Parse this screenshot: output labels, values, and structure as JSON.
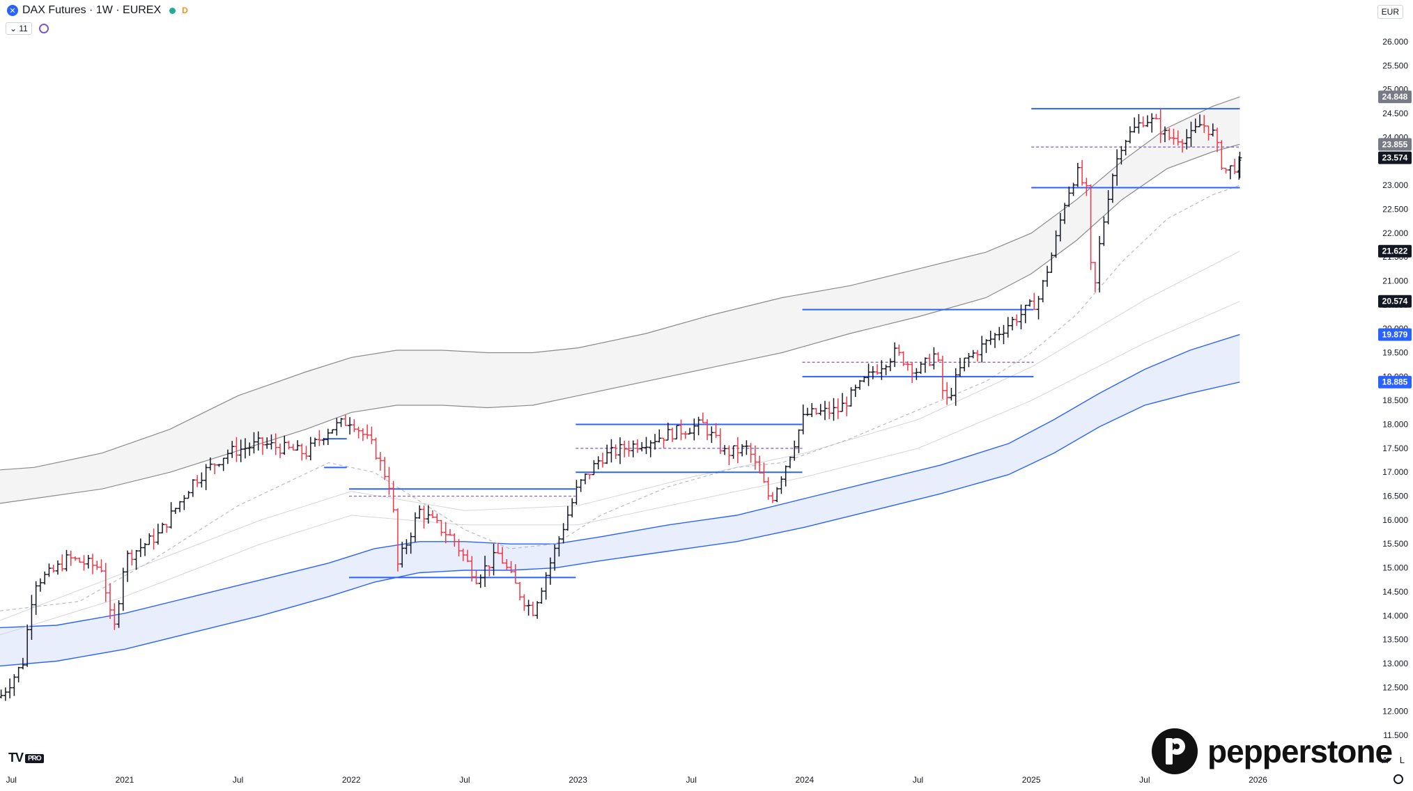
{
  "legend": {
    "symbol_title": "DAX Futures · 1W · EUREX",
    "symbol_icon": "x-icon",
    "badge": "D",
    "indicators_count": "11"
  },
  "currency": "EUR",
  "branding": {
    "tradingview": "TV",
    "tradingview_tier": "PRO",
    "broker": "pepperstone"
  },
  "corner_buttons": {
    "auto": "A",
    "log": "L"
  },
  "colors": {
    "up_bar": "#131722",
    "down_bar": "#f23645",
    "level_line": "#2962ff",
    "envelope_gray": "#8a8a8a",
    "envelope_blue": "#2962ff",
    "blue_fill": "#e8eefc"
  },
  "chart_data": {
    "type": "ohlc-bar",
    "title": "",
    "interval": "1W",
    "y_axis": {
      "min": 11500,
      "max": 26000,
      "step": 500,
      "tick_labels": [
        "11.500",
        "12.000",
        "12.500",
        "13.000",
        "13.500",
        "14.000",
        "14.500",
        "15.000",
        "15.500",
        "16.000",
        "16.500",
        "17.000",
        "17.500",
        "18.000",
        "18.500",
        "19.000",
        "19.500",
        "20.000",
        "20.500",
        "21.000",
        "21.500",
        "22.000",
        "22.500",
        "23.000",
        "23.500",
        "24.000",
        "24.500",
        "25.000",
        "25.500",
        "26.000"
      ]
    },
    "x_axis": {
      "start": "2020.45",
      "end": "2026.10",
      "ticks": [
        {
          "t": 2020.5,
          "label": "Jul"
        },
        {
          "t": 2021.0,
          "label": "2021"
        },
        {
          "t": 2021.5,
          "label": "Jul"
        },
        {
          "t": 2022.0,
          "label": "2022"
        },
        {
          "t": 2022.5,
          "label": "Jul"
        },
        {
          "t": 2023.0,
          "label": "2023"
        },
        {
          "t": 2023.5,
          "label": "Jul"
        },
        {
          "t": 2024.0,
          "label": "2024"
        },
        {
          "t": 2024.5,
          "label": "Jul"
        },
        {
          "t": 2025.0,
          "label": "2025"
        },
        {
          "t": 2025.5,
          "label": "Jul"
        },
        {
          "t": 2026.0,
          "label": "2026"
        }
      ]
    },
    "price_key_points": [
      [
        2020.45,
        12300
      ],
      [
        2020.55,
        13000
      ],
      [
        2020.6,
        14700
      ],
      [
        2020.68,
        14900
      ],
      [
        2020.75,
        15200
      ],
      [
        2020.9,
        15000
      ],
      [
        2020.95,
        13600
      ],
      [
        2021.0,
        15200
      ],
      [
        2021.15,
        15700
      ],
      [
        2021.3,
        16800
      ],
      [
        2021.45,
        17400
      ],
      [
        2021.6,
        17600
      ],
      [
        2021.8,
        17400
      ],
      [
        2021.9,
        17900
      ],
      [
        2022.0,
        18100
      ],
      [
        2022.1,
        17500
      ],
      [
        2022.18,
        16600
      ],
      [
        2022.2,
        15000
      ],
      [
        2022.3,
        16200
      ],
      [
        2022.45,
        15600
      ],
      [
        2022.55,
        14800
      ],
      [
        2022.65,
        15300
      ],
      [
        2022.75,
        14400
      ],
      [
        2022.8,
        14100
      ],
      [
        2022.9,
        15400
      ],
      [
        2023.0,
        16700
      ],
      [
        2023.1,
        17300
      ],
      [
        2023.2,
        17500
      ],
      [
        2023.4,
        17800
      ],
      [
        2023.55,
        18000
      ],
      [
        2023.65,
        17400
      ],
      [
        2023.75,
        17500
      ],
      [
        2023.85,
        16400
      ],
      [
        2023.92,
        17200
      ],
      [
        2024.0,
        18200
      ],
      [
        2024.15,
        18300
      ],
      [
        2024.3,
        19100
      ],
      [
        2024.4,
        19500
      ],
      [
        2024.5,
        19100
      ],
      [
        2024.58,
        19500
      ],
      [
        2024.62,
        18400
      ],
      [
        2024.7,
        19300
      ],
      [
        2024.8,
        19700
      ],
      [
        2024.9,
        20100
      ],
      [
        2024.98,
        20400
      ],
      [
        2025.03,
        20600
      ],
      [
        2025.1,
        21700
      ],
      [
        2025.15,
        22700
      ],
      [
        2025.2,
        23300
      ],
      [
        2025.25,
        22800
      ],
      [
        2025.27,
        20400
      ],
      [
        2025.3,
        21700
      ],
      [
        2025.35,
        23100
      ],
      [
        2025.4,
        23900
      ],
      [
        2025.5,
        24400
      ],
      [
        2025.55,
        24300
      ],
      [
        2025.6,
        24000
      ],
      [
        2025.7,
        24000
      ],
      [
        2025.75,
        24300
      ],
      [
        2025.8,
        24100
      ],
      [
        2025.85,
        23300
      ],
      [
        2025.9,
        23400
      ]
    ],
    "last_bar": {
      "t": 2025.92,
      "open": 23300,
      "high": 23700,
      "low": 23150,
      "close": 23574
    },
    "price_labels": [
      {
        "value": 24848,
        "text": "24.848",
        "style": "gray"
      },
      {
        "value": 23855,
        "text": "23.855",
        "style": "gray"
      },
      {
        "value": 23574,
        "text": "23.574",
        "style": "dark"
      },
      {
        "value": 21622,
        "text": "21.622",
        "style": "dark"
      },
      {
        "value": 20574,
        "text": "20.574",
        "style": "dark"
      },
      {
        "value": 19879,
        "text": "19.879",
        "style": "blue"
      },
      {
        "value": 18885,
        "text": "18.885",
        "style": "blue"
      }
    ],
    "gray_band": {
      "upper": [
        [
          2020.45,
          17050
        ],
        [
          2020.6,
          17100
        ],
        [
          2020.9,
          17400
        ],
        [
          2021.2,
          17900
        ],
        [
          2021.5,
          18600
        ],
        [
          2021.8,
          19100
        ],
        [
          2022.0,
          19400
        ],
        [
          2022.2,
          19550
        ],
        [
          2022.4,
          19550
        ],
        [
          2022.6,
          19500
        ],
        [
          2022.8,
          19500
        ],
        [
          2023.0,
          19600
        ],
        [
          2023.3,
          19900
        ],
        [
          2023.6,
          20300
        ],
        [
          2023.9,
          20650
        ],
        [
          2024.2,
          20900
        ],
        [
          2024.5,
          21250
        ],
        [
          2024.8,
          21600
        ],
        [
          2025.0,
          22000
        ],
        [
          2025.2,
          22700
        ],
        [
          2025.4,
          23500
        ],
        [
          2025.6,
          24200
        ],
        [
          2025.8,
          24650
        ],
        [
          2025.92,
          24848
        ]
      ],
      "lower": [
        [
          2020.45,
          16350
        ],
        [
          2020.6,
          16450
        ],
        [
          2020.9,
          16650
        ],
        [
          2021.2,
          17000
        ],
        [
          2021.5,
          17450
        ],
        [
          2021.8,
          17900
        ],
        [
          2022.0,
          18250
        ],
        [
          2022.2,
          18400
        ],
        [
          2022.4,
          18400
        ],
        [
          2022.6,
          18350
        ],
        [
          2022.8,
          18400
        ],
        [
          2023.0,
          18600
        ],
        [
          2023.3,
          18900
        ],
        [
          2023.6,
          19200
        ],
        [
          2023.9,
          19500
        ],
        [
          2024.2,
          19900
        ],
        [
          2024.5,
          20250
        ],
        [
          2024.8,
          20650
        ],
        [
          2025.0,
          21150
        ],
        [
          2025.2,
          21850
        ],
        [
          2025.4,
          22700
        ],
        [
          2025.6,
          23350
        ],
        [
          2025.8,
          23700
        ],
        [
          2025.92,
          23855
        ]
      ]
    },
    "blue_band": {
      "upper": [
        [
          2020.45,
          13750
        ],
        [
          2020.7,
          13800
        ],
        [
          2021.0,
          14050
        ],
        [
          2021.3,
          14400
        ],
        [
          2021.6,
          14750
        ],
        [
          2021.9,
          15100
        ],
        [
          2022.1,
          15400
        ],
        [
          2022.3,
          15550
        ],
        [
          2022.5,
          15550
        ],
        [
          2022.7,
          15500
        ],
        [
          2022.9,
          15500
        ],
        [
          2023.1,
          15650
        ],
        [
          2023.4,
          15900
        ],
        [
          2023.7,
          16100
        ],
        [
          2024.0,
          16450
        ],
        [
          2024.3,
          16800
        ],
        [
          2024.6,
          17150
        ],
        [
          2024.9,
          17600
        ],
        [
          2025.1,
          18100
        ],
        [
          2025.3,
          18650
        ],
        [
          2025.5,
          19150
        ],
        [
          2025.7,
          19550
        ],
        [
          2025.92,
          19879
        ]
      ],
      "lower": [
        [
          2020.45,
          12950
        ],
        [
          2020.7,
          13050
        ],
        [
          2021.0,
          13300
        ],
        [
          2021.3,
          13650
        ],
        [
          2021.6,
          14000
        ],
        [
          2021.9,
          14400
        ],
        [
          2022.1,
          14700
        ],
        [
          2022.3,
          14900
        ],
        [
          2022.5,
          14950
        ],
        [
          2022.7,
          14950
        ],
        [
          2022.9,
          15000
        ],
        [
          2023.1,
          15150
        ],
        [
          2023.4,
          15350
        ],
        [
          2023.7,
          15550
        ],
        [
          2024.0,
          15850
        ],
        [
          2024.3,
          16200
        ],
        [
          2024.6,
          16550
        ],
        [
          2024.9,
          16950
        ],
        [
          2025.1,
          17400
        ],
        [
          2025.3,
          17950
        ],
        [
          2025.5,
          18400
        ],
        [
          2025.7,
          18650
        ],
        [
          2025.92,
          18885
        ]
      ]
    },
    "dashed_ma": [
      [
        2020.45,
        14100
      ],
      [
        2020.8,
        14300
      ],
      [
        2021.1,
        15100
      ],
      [
        2021.5,
        16300
      ],
      [
        2021.9,
        17200
      ],
      [
        2022.1,
        17000
      ],
      [
        2022.3,
        16400
      ],
      [
        2022.5,
        15800
      ],
      [
        2022.7,
        15400
      ],
      [
        2022.9,
        15500
      ],
      [
        2023.1,
        16100
      ],
      [
        2023.4,
        16700
      ],
      [
        2023.7,
        17100
      ],
      [
        2023.9,
        17200
      ],
      [
        2024.2,
        17700
      ],
      [
        2024.5,
        18300
      ],
      [
        2024.8,
        18900
      ],
      [
        2025.0,
        19500
      ],
      [
        2025.2,
        20300
      ],
      [
        2025.4,
        21400
      ],
      [
        2025.6,
        22300
      ],
      [
        2025.8,
        22800
      ],
      [
        2025.92,
        23000
      ]
    ],
    "faint_mas": [
      [
        [
          2020.45,
          13600
        ],
        [
          2021.0,
          14400
        ],
        [
          2021.6,
          15500
        ],
        [
          2022.0,
          16100
        ],
        [
          2022.5,
          15900
        ],
        [
          2023.0,
          15900
        ],
        [
          2023.5,
          16400
        ],
        [
          2024.0,
          16900
        ],
        [
          2024.5,
          17500
        ],
        [
          2025.0,
          18500
        ],
        [
          2025.5,
          19700
        ],
        [
          2025.92,
          20574
        ]
      ],
      [
        [
          2020.45,
          13900
        ],
        [
          2021.0,
          14900
        ],
        [
          2021.6,
          16000
        ],
        [
          2022.0,
          16600
        ],
        [
          2022.5,
          16200
        ],
        [
          2023.0,
          16300
        ],
        [
          2023.5,
          16900
        ],
        [
          2024.0,
          17400
        ],
        [
          2024.5,
          18100
        ],
        [
          2025.0,
          19200
        ],
        [
          2025.5,
          20600
        ],
        [
          2025.92,
          21622
        ]
      ]
    ],
    "level_lines": [
      {
        "y": 17700,
        "t0": 2021.88,
        "t1": 2021.98
      },
      {
        "y": 17100,
        "t0": 2021.88,
        "t1": 2021.98
      },
      {
        "y": 16650,
        "t0": 2021.99,
        "t1": 2022.99
      },
      {
        "y": 14800,
        "t0": 2021.99,
        "t1": 2022.99
      },
      {
        "y": 18000,
        "t0": 2022.99,
        "t1": 2023.99
      },
      {
        "y": 17000,
        "t0": 2022.99,
        "t1": 2023.99
      },
      {
        "y": 20400,
        "t0": 2023.99,
        "t1": 2025.01
      },
      {
        "y": 19000,
        "t0": 2023.99,
        "t1": 2025.01
      },
      {
        "y": 24600,
        "t0": 2025.0,
        "t1": 2025.92
      },
      {
        "y": 22950,
        "t0": 2025.0,
        "t1": 2025.92
      }
    ],
    "mid_dashed_lines": [
      {
        "y": 16500,
        "t0": 2021.99,
        "t1": 2022.99
      },
      {
        "y": 17500,
        "t0": 2022.99,
        "t1": 2023.99
      },
      {
        "y": 19300,
        "t0": 2023.99,
        "t1": 2025.01
      },
      {
        "y": 23800,
        "t0": 2025.0,
        "t1": 2025.92
      }
    ]
  }
}
